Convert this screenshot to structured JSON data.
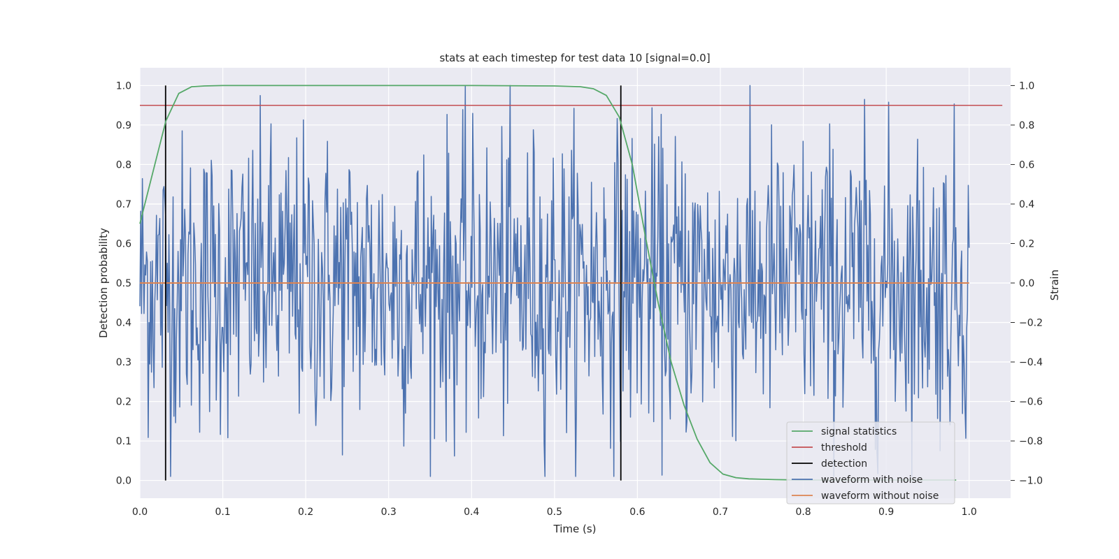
{
  "chart_data": {
    "type": "line",
    "title": "stats at each timestep for test data 10 [signal=0.0]",
    "xlabel": "Time (s)",
    "ylabel": "Detection probability",
    "y2label": "Strain",
    "xlim": [
      0.0,
      1.05
    ],
    "ylim": [
      -0.045,
      1.045
    ],
    "y2lim": [
      -1.09,
      1.09
    ],
    "xticks": [
      "0.0",
      "0.1",
      "0.2",
      "0.3",
      "0.4",
      "0.5",
      "0.6",
      "0.7",
      "0.8",
      "0.9",
      "1.0"
    ],
    "yticks": [
      "0.0",
      "0.1",
      "0.2",
      "0.3",
      "0.4",
      "0.5",
      "0.6",
      "0.7",
      "0.8",
      "0.9",
      "1.0"
    ],
    "y2ticks": [
      "−1.0",
      "−0.8",
      "−0.6",
      "−0.4",
      "−0.2",
      "0.0",
      "0.2",
      "0.4",
      "0.6",
      "0.8",
      "1.0"
    ],
    "grid": true,
    "legend_position": "bottom-right",
    "colors": {
      "signal_statistics": "#55a868",
      "threshold": "#c44e52",
      "detection": "#000000",
      "waveform_with_noise": "#4c72b0",
      "waveform_without_noise": "#dd8452",
      "plot_background": "#eaeaf2",
      "grid": "#ffffff"
    },
    "series": [
      {
        "name": "signal statistics",
        "axis": "left",
        "x": [
          0.0,
          0.0156,
          0.0313,
          0.0469,
          0.0625,
          0.0781,
          0.1,
          0.2,
          0.3,
          0.4,
          0.5,
          0.5313,
          0.5469,
          0.5625,
          0.5781,
          0.5938,
          0.6094,
          0.625,
          0.6406,
          0.6563,
          0.6719,
          0.6875,
          0.7031,
          0.7188,
          0.7344,
          0.75,
          0.7656,
          0.8,
          0.9,
          0.9844
        ],
        "y": [
          0.65,
          0.78,
          0.91,
          0.98,
          0.997,
          0.999,
          1.0,
          1.0,
          1.0,
          1.0,
          0.999,
          0.997,
          0.992,
          0.975,
          0.92,
          0.8,
          0.62,
          0.45,
          0.3,
          0.19,
          0.105,
          0.045,
          0.016,
          0.007,
          0.004,
          0.003,
          0.002,
          0.001,
          0.001,
          0.001
        ]
      },
      {
        "name": "threshold",
        "axis": "left",
        "x": [
          0.0,
          1.04
        ],
        "y": [
          0.95,
          0.95
        ]
      },
      {
        "name": "detection",
        "axis": "left",
        "x": [
          0.031,
          0.58
        ],
        "y": [
          0.0,
          1.0
        ]
      },
      {
        "name": "waveform with noise",
        "axis": "right",
        "x_range": [
          0.0,
          1.0
        ],
        "n_points": 1000,
        "y_range_observed": [
          -0.98,
          1.0
        ],
        "values": "dense random noise around 0.0 with amplitude roughly ±0.8"
      },
      {
        "name": "waveform without noise",
        "axis": "right",
        "x": [
          0.0,
          1.0
        ],
        "y": [
          0.0,
          0.0
        ]
      }
    ]
  }
}
